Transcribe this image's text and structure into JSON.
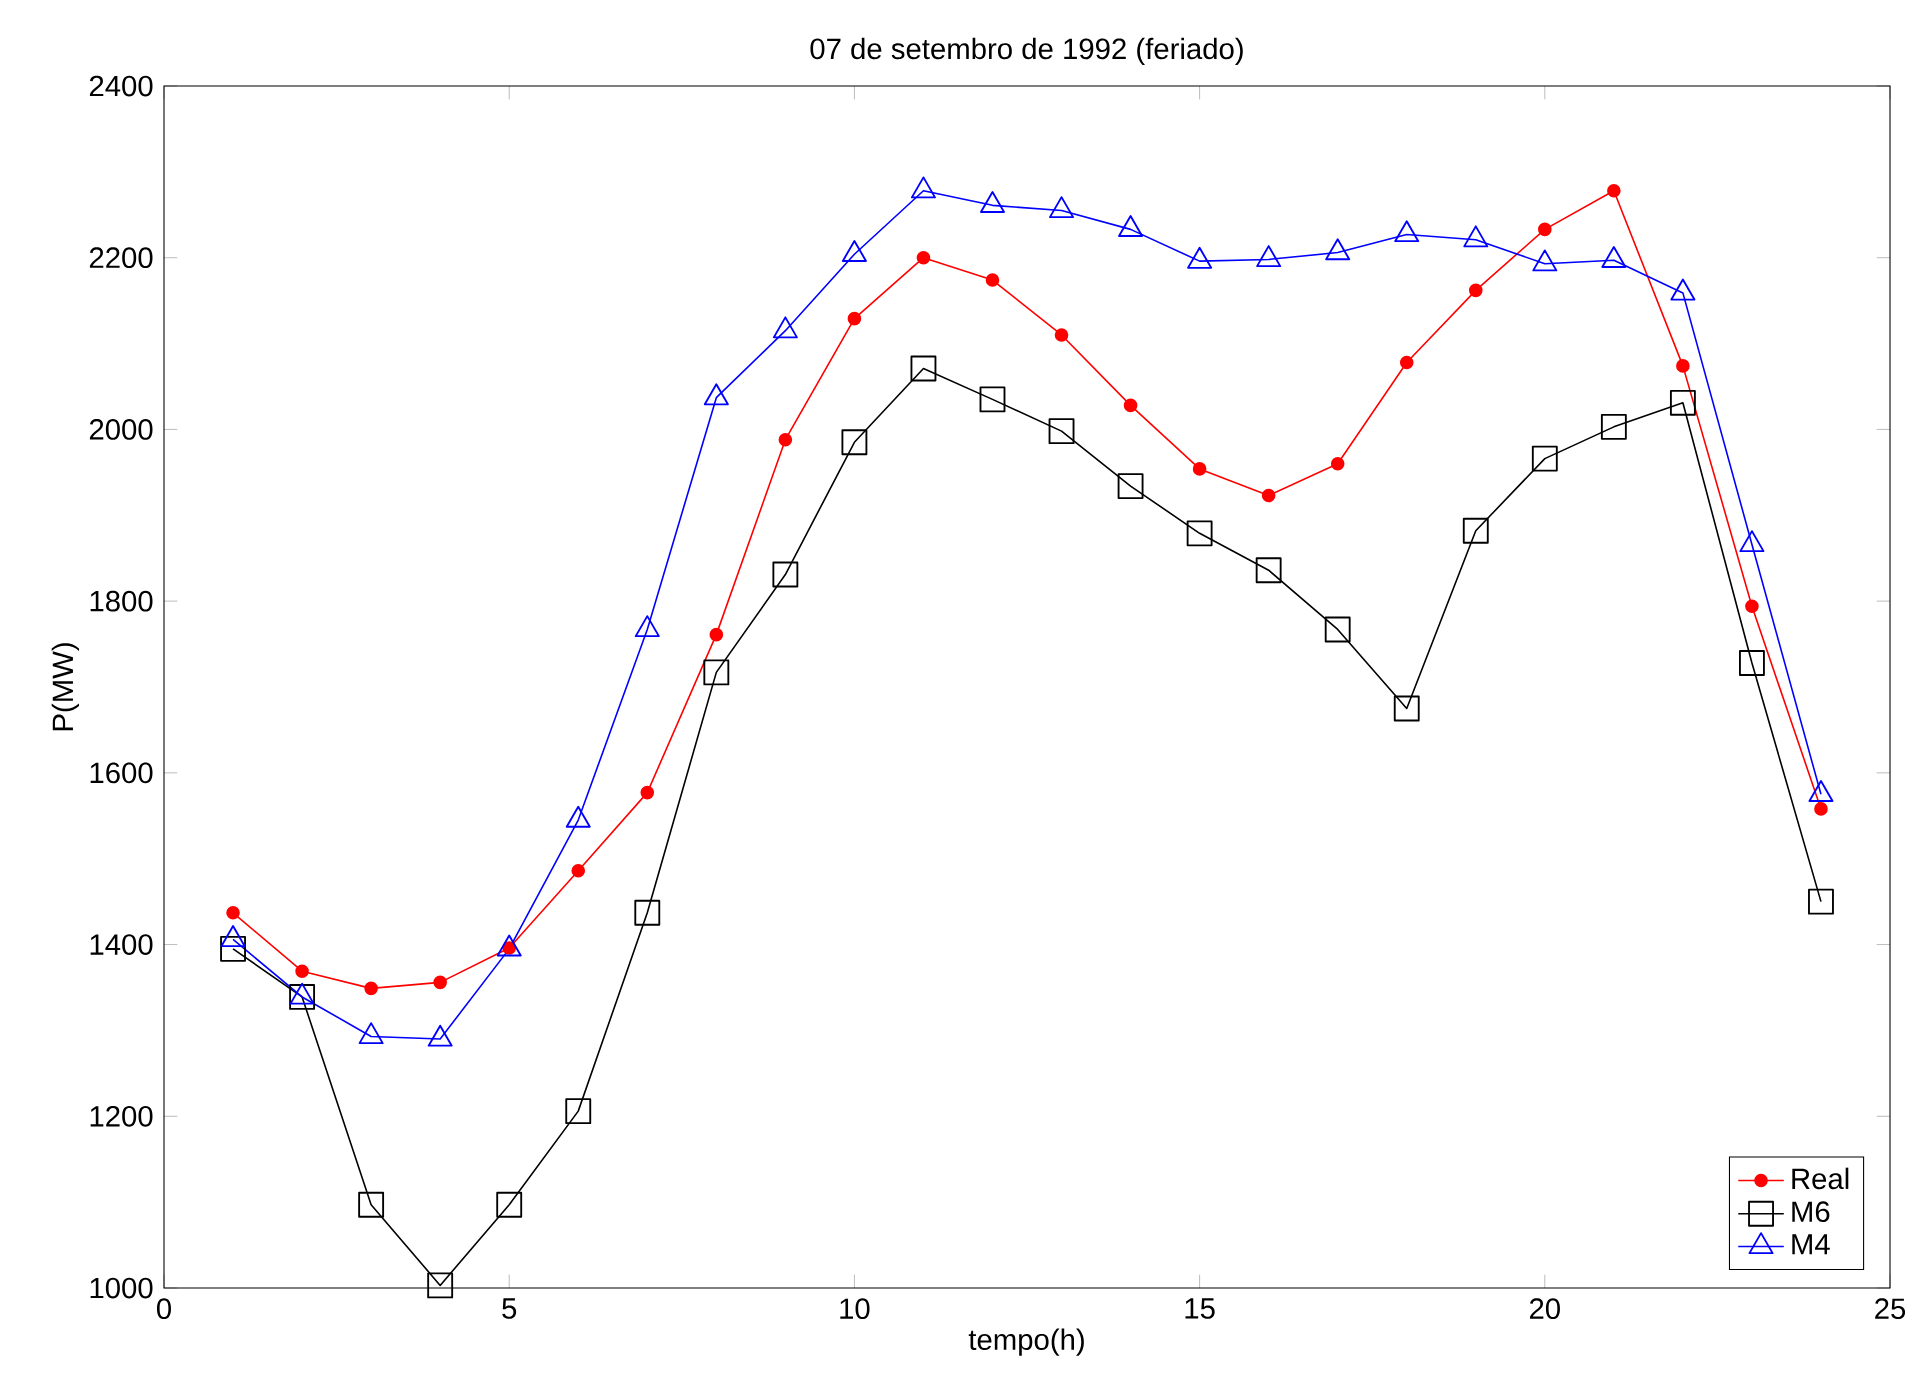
{
  "chart_data": {
    "type": "line",
    "title": "07 de setembro de 1992 (feriado)",
    "xlabel": "tempo(h)",
    "ylabel": "P(MW)",
    "x": [
      1,
      2,
      3,
      4,
      5,
      6,
      7,
      8,
      9,
      10,
      11,
      12,
      13,
      14,
      15,
      16,
      17,
      18,
      19,
      20,
      21,
      22,
      23,
      24
    ],
    "series": [
      {
        "name": "Real",
        "color": "#ff0000",
        "marker": "circle",
        "values": [
          1437,
          1369,
          1349,
          1356,
          1396,
          1486,
          1577,
          1761,
          1988,
          2129,
          2200,
          2174,
          2110,
          2028,
          1954,
          1923,
          1960,
          2078,
          2162,
          2233,
          2278,
          2074,
          1794,
          1558
        ]
      },
      {
        "name": "M6",
        "color": "#000000",
        "marker": "square",
        "values": [
          1395,
          1339,
          1097,
          1003,
          1097,
          1206,
          1437,
          1717,
          1831,
          1985,
          2071,
          2035,
          1998,
          1934,
          1879,
          1836,
          1767,
          1675,
          1882,
          1966,
          2003,
          2031,
          1728,
          1450
        ]
      },
      {
        "name": "M4",
        "color": "#0000ff",
        "marker": "triangle",
        "values": [
          1406,
          1339,
          1293,
          1290,
          1395,
          1545,
          1767,
          2037,
          2115,
          2204,
          2278,
          2261,
          2255,
          2233,
          2196,
          2198,
          2206,
          2227,
          2221,
          2193,
          2197,
          2159,
          1866,
          1575
        ]
      }
    ],
    "xlim": [
      0,
      25
    ],
    "ylim": [
      1000,
      2400
    ],
    "xticks": [
      0,
      5,
      10,
      15,
      20,
      25
    ],
    "yticks": [
      1000,
      1200,
      1400,
      1600,
      1800,
      2000,
      2200,
      2400
    ],
    "grid": false,
    "legend": "bottom right",
    "line_style": "solid"
  }
}
